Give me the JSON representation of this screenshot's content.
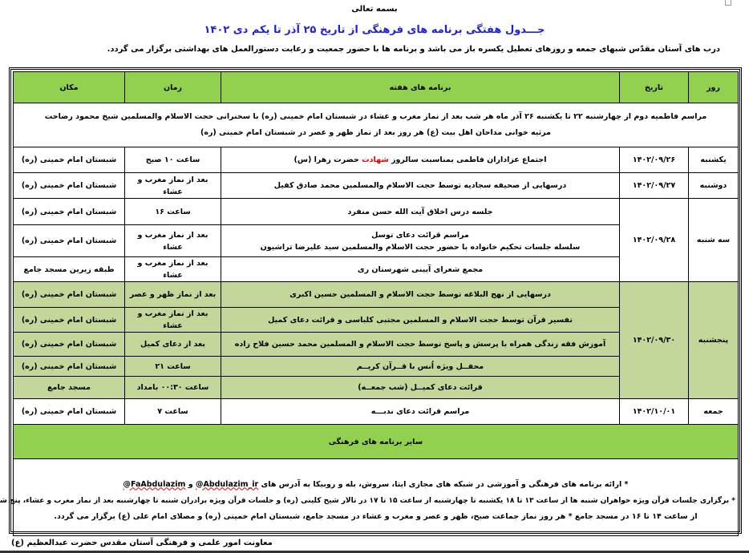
{
  "header": {
    "bismillah": "بسمه تعالی",
    "title": "جـــدول هفتگی برنامه های فرهنگی از تاریخ  ۲۵ آذر تا یکم دی  ۱۴۰۲",
    "intro": "درب های آستان مقدّس شبهای جمعه و روزهای تعطیل یکسره باز می باشد و برنامه ها با حضور جمعیت و رعایت دستورالعمل های بهداشتی برگزار می گردد."
  },
  "table": {
    "columns": [
      "روز",
      "تاریخ",
      "برنامه های هفته",
      "زمان",
      "مکان"
    ],
    "notice": {
      "line1": "مراسم فاطمیه دوم از چهارشنبه ۲۲ تا یکشنبه ۲۶ آذر ماه هر شب بعد از نماز مغرب و عشاء در  شبستان امام خمینی (ره) با سخنرانی حجت الاسلام والمسلمین شیخ محمود رضاخت",
      "line2": "مرثیه خوانی مداحان اهل بیت (ع) هر روز بعد از نماز ظهر و عصر در شبستان امام خمینی (ره)"
    },
    "sunday": {
      "day": "یکشنبه",
      "date": "۱۴۰۲/۰۹/۲۶",
      "program_pre": "اجتماع عزاداران فاطمی بمناسبت سالروز ",
      "program_red": "شهادت",
      "program_post": " حضرت زهرا (س)",
      "time": "ساعت ۱۰ صبح",
      "place": "شبستان امام خمینی (ره)"
    },
    "monday": {
      "day": "دوشنبه",
      "date": "۱۴۰۲/۰۹/۲۷",
      "program": "درسهایی از صحیفه سجادیه توسط حجت الاسلام والمسلمین محمد صادق کفیل",
      "time": "بعد از نماز مغرب و عشاء",
      "place": "شبستان امام خمینی (ره)"
    },
    "tuesday": {
      "day": "سه شنبه",
      "date": "۱۴۰۲/۰۹/۲۸",
      "rows": [
        {
          "program": "جلسه درس اخلاق آیت الله حسن منفرد",
          "program2": "",
          "time": "ساعت ۱۶",
          "place": "شبستان امام خمینی (ره)"
        },
        {
          "program": "مراسم قرائت دعای توسل",
          "program2": "سلسله جلسات تحکیم خانواده با حضور حجت الاسلام والمسلمین سید علیرضا تراشیون",
          "time": "بعد از نماز مغرب و عشاء",
          "place": "شبستان امام خمینی (ره)"
        },
        {
          "program": "مجمع شعرای آیینی شهرستان ری",
          "program2": "",
          "time": "بعد از نماز مغرب و عشاء",
          "place": "طبقه زیرین مسجد جامع"
        }
      ]
    },
    "thursday": {
      "day": "پنجشنبه",
      "date": "۱۴۰۲/۰۹/۳۰",
      "rows": [
        {
          "program": "درسهایی از نهج البلاغه توسط حجت الاسلام و المسلمین حسین اکبری",
          "time": "بعد از نماز ظهر و عصر",
          "place": "شبستان امام خمینی (ره)"
        },
        {
          "program": "تفسیر قرآن  توسط حجت الاسلام و المسلمین مجتبی کلباسی و قرائت دعای کمیل",
          "time": "بعد از نماز مغرب و عشاء",
          "place": "شبستان امام خمینی (ره)"
        },
        {
          "program": "آموزش فقه زندگی همراه با پرسش و پاسخ توسط حجت الاسلام و المسلمین محمد حسین فلاح زاده",
          "time": "بعد از دعای کمیل",
          "place": "شبستان امام خمینی (ره)"
        },
        {
          "program": "محفــل ویژه اُنس با قــرآن کریــم",
          "time": "ساعت ۲۱",
          "place": "شبستان امام خمینی (ره)"
        },
        {
          "program": "قرائت دعای کمیــل (شب جمعــه)",
          "time": "ساعت ۰۰:۳۰  بامداد",
          "place": "مسجد جامع"
        }
      ]
    },
    "friday": {
      "day": "جمعه",
      "date": "۱۴۰۲/۱۰/۰۱",
      "program": "مراسم قرائت دعای ندبـــه",
      "time": "ساعت ۷",
      "place": "شبستان امام خمینی (ره)"
    },
    "other_title": "سایر برنامه های فرهنگی",
    "notes": {
      "n1_pre": "* ارائه برنامه های فرهنگی و آموزشی در شبکه های مجازی ایتا، سروش، بله و روبیکا به آدرس های ",
      "link1": "@Abdulazim_ir",
      "n1_mid": " و ",
      "link2": "@FaAbdulazim",
      "n2": "* برگزاری جلسات قرآن ویژه خواهران شنبه ها از ساعت ۱۳ تا ۱۸ یکشنبه تا چهارشنبه از ساعت ۱۵ تا ۱۷ در تالار شیخ کلینی (ره) و جلسات قرآن ویژه برادران  شنبه تا چهارشنبه بعد از نماز مغرب و عشاء، پنج شنبه ها",
      "n3": "از ساعت ۱۴ تا ۱۶ در مسجد جامع     * هر روز نماز جماعت صبح، ظهر و عصر و مغرب و عشاء در مسجد جامع، شبستان امام خمینی (ره) و مصلای امام علی (ع) برگزار می گردد."
    }
  },
  "footer": "معاونت امور علمی و فرهنگی آستان مقدس حضرت عبدالعظیم (ع)",
  "colors": {
    "header_green": "#92d050",
    "thursday_green": "#c4d79b",
    "title_blue": "#1f1fdd",
    "highlight_red": "#e00000"
  }
}
